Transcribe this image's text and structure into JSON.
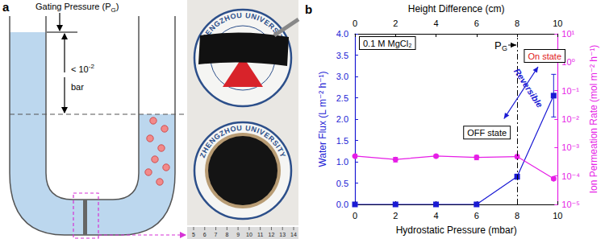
{
  "panel_a": {
    "label": "a",
    "gating_text": "Gating Pressure (P",
    "gating_sub": "G",
    "gating_end": ")",
    "height_text": "< 10",
    "height_sup": "-2",
    "height_unit": "bar",
    "logo_text": "ZHENGZHOU UNIVERSITY",
    "ruler": [
      5,
      6,
      7,
      8,
      9,
      10,
      11,
      12,
      13,
      14
    ]
  },
  "chart_data": {
    "type": "line",
    "panel_label": "b",
    "x": [
      0,
      2,
      4,
      6,
      8,
      9.8
    ],
    "xlabel": "Hydrostatic Pressure (mbar)",
    "xlim": [
      0,
      10
    ],
    "xticks": [
      0,
      2,
      4,
      6,
      8,
      10
    ],
    "x2label": "Height Difference (cm)",
    "x2lim": [
      0,
      10
    ],
    "x2ticks": [
      0,
      2,
      4,
      6,
      8,
      10
    ],
    "ylabel": "Water Flux (L m⁻² h⁻¹)",
    "ylim": [
      0,
      4
    ],
    "yticks": [
      {
        "value": 0,
        "label": "0.0"
      },
      0.5,
      {
        "value": 1,
        "label": "1.0"
      },
      1.5,
      {
        "value": 2,
        "label": "2.0"
      },
      2.5,
      {
        "value": 3,
        "label": "3.0"
      },
      3.5,
      {
        "value": 4,
        "label": "4.0"
      }
    ],
    "y2label": "Ion Permeation Rate (mol m⁻² h⁻¹)",
    "y2lim": [
      1e-05,
      10
    ],
    "y2ticks": [
      {
        "value": 1e-05,
        "label": "10⁻⁵"
      },
      {
        "value": 0.0001,
        "label": "10⁻⁴"
      },
      {
        "value": 0.001,
        "label": "10⁻³"
      },
      {
        "value": 0.01,
        "label": "10⁻²"
      },
      {
        "value": 0.1,
        "label": "10⁻¹"
      },
      {
        "value": 1,
        "label": "10⁰"
      },
      {
        "value": 10,
        "label": "10¹"
      }
    ],
    "log": "y2",
    "grid": false,
    "series": [
      {
        "color": "#1a1ad4",
        "marker": "square",
        "line_style": "solid",
        "values": [
          0,
          0,
          0,
          0,
          0.65,
          2.55
        ],
        "errors": [
          0,
          0,
          0,
          0,
          0.06,
          0.5
        ]
      },
      {
        "axis": "y2",
        "color": "#e61ee6",
        "marker": "circle",
        "line_style": "solid",
        "values": [
          0.0005,
          0.00038,
          0.0005,
          0.00045,
          0.00048,
          8e-05
        ],
        "errors": [
          8e-05,
          7e-05,
          6e-05,
          8e-05,
          6e-05,
          1e-05
        ]
      }
    ],
    "gating_pressure": 8,
    "gating_label": "P",
    "gating_sub": "G",
    "medium": "0.1 M MgCl₂",
    "on_label": "On state",
    "off_label": "OFF state",
    "arrow_label": "Reversible"
  }
}
